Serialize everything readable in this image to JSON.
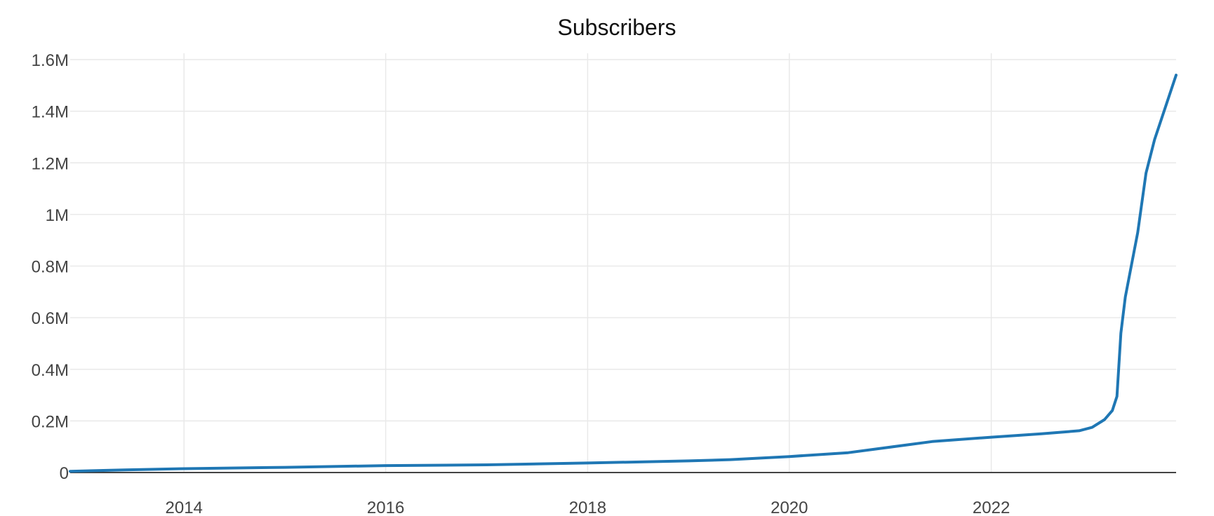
{
  "chart_data": {
    "type": "line",
    "title": "Subscribers",
    "xlabel": "",
    "ylabel": "",
    "xlim": [
      "2012-11-15",
      "2023-11-01"
    ],
    "ylim": [
      0,
      1600000
    ],
    "x_ticks": [
      "2014",
      "2016",
      "2018",
      "2020",
      "2022"
    ],
    "x_tick_dates": [
      "2014-01-01",
      "2016-01-01",
      "2018-01-01",
      "2020-01-01",
      "2022-01-01"
    ],
    "y_ticks": [
      0,
      200000,
      400000,
      600000,
      800000,
      1000000,
      1200000,
      1400000,
      1600000
    ],
    "y_tick_labels": [
      "0",
      "0.2M",
      "0.4M",
      "0.6M",
      "0.8M",
      "1M",
      "1.2M",
      "1.4M",
      "1.6M"
    ],
    "grid": true,
    "legend": "none",
    "colors": {
      "line": "#1f77b4",
      "grid": "#e9e9e9",
      "zero_line": "#444444"
    },
    "series": [
      {
        "x": [
          "2012-11-15",
          "2013-06-01",
          "2014-01-01",
          "2015-01-01",
          "2016-01-01",
          "2017-01-01",
          "2018-01-01",
          "2019-01-01",
          "2019-06-01",
          "2020-01-01",
          "2020-08-01",
          "2021-06-01",
          "2022-01-01",
          "2022-07-01",
          "2022-11-15",
          "2023-01-01",
          "2023-02-15",
          "2023-03-15",
          "2023-04-01",
          "2023-04-15",
          "2023-05-01",
          "2023-06-15",
          "2023-07-15",
          "2023-08-15",
          "2023-11-01"
        ],
        "values": [
          5000,
          10000,
          15000,
          20000,
          27000,
          30000,
          37000,
          45000,
          50000,
          62000,
          77000,
          120000,
          137000,
          150000,
          162000,
          175000,
          205000,
          240000,
          295000,
          540000,
          680000,
          930000,
          1160000,
          1290000,
          1540000
        ]
      }
    ]
  }
}
